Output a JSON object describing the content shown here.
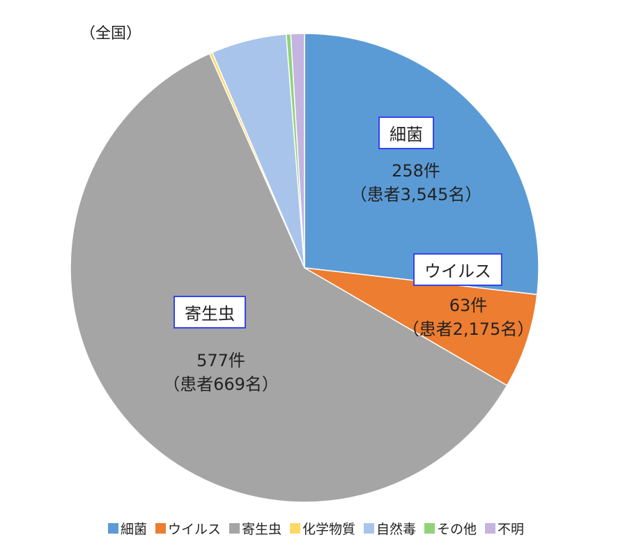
{
  "scope_label": "（全国）",
  "chart_data": {
    "type": "pie",
    "start_angle_deg": 0,
    "direction": "clockwise",
    "slices": [
      {
        "name": "細菌",
        "value": 258,
        "count_label": "258件",
        "patients_label": "（患者3,545名）",
        "color": "#5b9bd5"
      },
      {
        "name": "ウイルス",
        "value": 63,
        "count_label": "63件",
        "patients_label": "（患者2,175名）",
        "color": "#ed7d31"
      },
      {
        "name": "寄生虫",
        "value": 577,
        "count_label": "577件",
        "patients_label": "（患者669名）",
        "color": "#a5a5a5"
      },
      {
        "name": "化学物質",
        "value": 2,
        "color": "#ffd966"
      },
      {
        "name": "自然毒",
        "value": 50,
        "color": "#a9c4eb"
      },
      {
        "name": "その他",
        "value": 3,
        "color": "#8fd27a"
      },
      {
        "name": "不明",
        "value": 9,
        "color": "#c5b3e0"
      }
    ]
  },
  "legend": [
    "細菌",
    "ウイルス",
    "寄生虫",
    "化学物質",
    "自然毒",
    "その他",
    "不明"
  ]
}
